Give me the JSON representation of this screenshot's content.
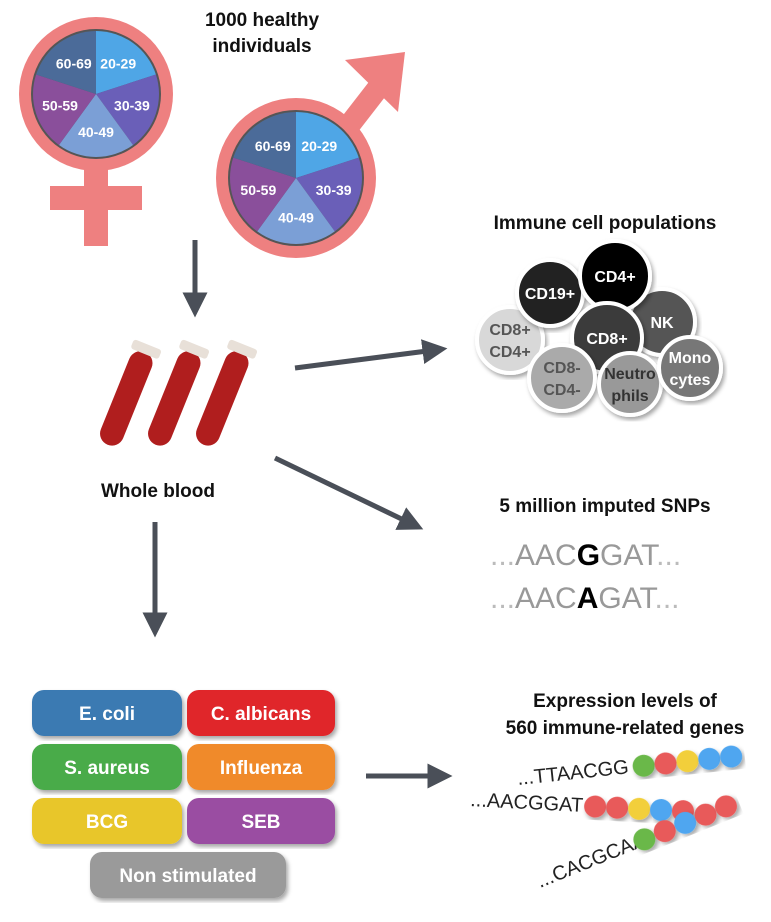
{
  "title": "1000 healthy individuals",
  "title_lines": [
    "1000 healthy",
    "individuals"
  ],
  "age_groups": [
    "20-29",
    "30-39",
    "40-49",
    "50-59",
    "60-69"
  ],
  "age_colors": [
    "#4fa6e6",
    "#6a5fb8",
    "#7b9fd6",
    "#8a4f9b",
    "#4b6b99"
  ],
  "symbol_color": "#ee8080",
  "whole_blood": "Whole blood",
  "immune": {
    "title": "Immune cell populations",
    "cells": [
      {
        "label": [
          "CD8+",
          "CD4+"
        ],
        "fill": "#d8d8d8",
        "text": "#555"
      },
      {
        "label": [
          "CD19+"
        ],
        "fill": "#222",
        "text": "#fff"
      },
      {
        "label": [
          "NK"
        ],
        "fill": "#555",
        "text": "#fff"
      },
      {
        "label": [
          "CD4+"
        ],
        "fill": "#000",
        "text": "#fff"
      },
      {
        "label": [
          "CD8+"
        ],
        "fill": "#3a3a3a",
        "text": "#fff"
      },
      {
        "label": [
          "CD8-",
          "CD4-"
        ],
        "fill": "#aaa",
        "text": "#555"
      },
      {
        "label": [
          "Neutro",
          "phils"
        ],
        "fill": "#999",
        "text": "#333"
      },
      {
        "label": [
          "Mono",
          "cytes"
        ],
        "fill": "#777",
        "text": "#fff"
      }
    ]
  },
  "snps": {
    "title": "5 million imputed SNPs",
    "seq1": [
      "...",
      "AAC",
      "G",
      "GAT",
      "..."
    ],
    "seq2": [
      "...",
      "AAC",
      "A",
      "GAT",
      "..."
    ]
  },
  "stimuli": [
    {
      "label": "E. coli",
      "color": "#3a7ab2"
    },
    {
      "label": "C. albicans",
      "color": "#e0282c"
    },
    {
      "label": "S. aureus",
      "color": "#4aab4a"
    },
    {
      "label": "Influenza",
      "color": "#f08a2b"
    },
    {
      "label": "BCG",
      "color": "#e8c62c"
    },
    {
      "label": "SEB",
      "color": "#9a4ea2"
    },
    {
      "label": "Non stimulated",
      "color": "#9a9a9a"
    }
  ],
  "expression": {
    "title_lines": [
      "Expression levels of",
      "560 immune-related genes"
    ],
    "rows": [
      {
        "seq": "...TTAACGG",
        "beads": [
          "#6ab84a",
          "#e85a5a",
          "#f2cf3a",
          "#4fa6f0",
          "#4fa6f0"
        ]
      },
      {
        "seq": "...AACGGAT",
        "beads": [
          "#e85a5a",
          "#e85a5a",
          "#f2cf3a",
          "#4fa6f0",
          "#e85a5a"
        ]
      },
      {
        "seq": "...CACGCAA",
        "beads": [
          "#6ab84a",
          "#e85a5a",
          "#4fa6f0",
          "#e85a5a",
          "#e85a5a"
        ]
      }
    ]
  }
}
